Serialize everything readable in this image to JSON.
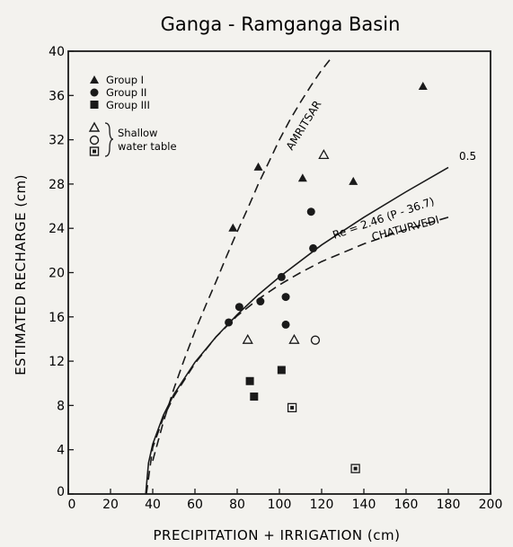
{
  "chart_data": {
    "type": "scatter",
    "title": "Ganga - Ramganga Basin",
    "xlabel": "PRECIPITATION + IRRIGATION (cm)",
    "ylabel": "ESTIMATED RECHARGE (cm)",
    "xlim": [
      0,
      200
    ],
    "ylim": [
      0,
      40
    ],
    "x_ticks": [
      "0",
      "20",
      "40",
      "60",
      "80",
      "100",
      "120",
      "140",
      "160",
      "180",
      "200"
    ],
    "y_ticks": [
      "0",
      "4",
      "8",
      "12",
      "16",
      "20",
      "24",
      "28",
      "32",
      "36",
      "40"
    ],
    "legend_placement": "top-left",
    "legend": {
      "group1": "Group I",
      "group2": "Group II",
      "group3": "Group III",
      "shallow_line1": "Shallow",
      "shallow_line2": "water table"
    },
    "series": [
      {
        "name": "Group I",
        "marker": "filled-triangle",
        "x": [
          78,
          90,
          111,
          135,
          168
        ],
        "y": [
          24,
          29.5,
          28.5,
          28.2,
          36.8
        ]
      },
      {
        "name": "Group II",
        "marker": "filled-circle",
        "x": [
          76,
          81,
          91,
          101,
          103,
          103,
          115,
          116
        ],
        "y": [
          15.5,
          16.9,
          17.4,
          19.6,
          17.8,
          15.3,
          25.5,
          22.2
        ]
      },
      {
        "name": "Group III",
        "marker": "filled-square",
        "x": [
          86,
          88,
          101
        ],
        "y": [
          10.2,
          8.8,
          11.2
        ]
      },
      {
        "name": "Shallow water table - Group I",
        "marker": "open-triangle",
        "x": [
          85,
          107,
          121
        ],
        "y": [
          13.9,
          13.9,
          30.6
        ]
      },
      {
        "name": "Shallow water table - Group II",
        "marker": "open-circle",
        "x": [
          117
        ],
        "y": [
          13.9
        ]
      },
      {
        "name": "Shallow water table - Group III",
        "marker": "open-square",
        "x": [
          106,
          136
        ],
        "y": [
          7.8,
          2.3
        ]
      }
    ],
    "curves": [
      {
        "name": "AMRITSAR",
        "style": "dashed",
        "x": [
          40,
          45,
          50,
          55,
          60,
          65,
          70,
          75,
          80,
          85,
          90,
          95,
          100,
          105,
          110,
          115,
          120,
          125
        ],
        "y": [
          3,
          6.5,
          9.5,
          12.2,
          14.7,
          17,
          19.2,
          21.5,
          23.7,
          25.8,
          28,
          30,
          32,
          33.8,
          35.4,
          36.9,
          38.3,
          39.5
        ]
      },
      {
        "name": "Re = 2.46 (P - 36.7)^0.5",
        "style": "solid",
        "x": [
          36.7,
          38,
          40,
          45,
          50,
          60,
          70,
          80,
          90,
          100,
          120,
          140,
          160,
          180
        ],
        "y": [
          0,
          2.8,
          4.5,
          7.1,
          9,
          11.9,
          14.2,
          16.2,
          18,
          19.6,
          22.5,
          25,
          27.3,
          29.5
        ]
      },
      {
        "name": "CHATURVEDI",
        "style": "dashed",
        "x": [
          37,
          40,
          45,
          50,
          60,
          70,
          80,
          90,
          100,
          110,
          120,
          140,
          160,
          180
        ],
        "y": [
          0,
          4.2,
          6.9,
          8.8,
          11.8,
          14.2,
          16.1,
          17.6,
          18.9,
          20,
          21,
          22.6,
          23.9,
          25
        ]
      }
    ],
    "annotations": {
      "amritsar": "AMRITSAR",
      "equation": "Re = 2.46 (P - 36.7)",
      "exponent": "0.5",
      "chaturvedi": "CHATURVEDI"
    }
  }
}
